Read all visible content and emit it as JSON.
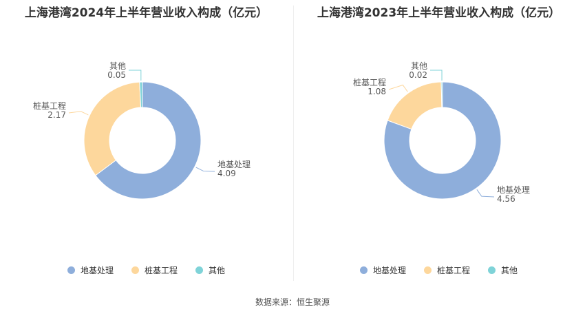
{
  "colors": {
    "地基处理": "#8eaedb",
    "桩基工程": "#fdd79c",
    "其他": "#7fd3d8"
  },
  "chart_data": [
    {
      "type": "pie",
      "title": "上海港湾2024年上半年营业收入构成（亿元）",
      "slices": [
        {
          "name": "地基处理",
          "value": 4.09
        },
        {
          "name": "桩基工程",
          "value": 2.17
        },
        {
          "name": "其他",
          "value": 0.05
        }
      ],
      "legend": [
        "地基处理",
        "桩基工程",
        "其他"
      ],
      "legend_position": "bottom"
    },
    {
      "type": "pie",
      "title": "上海港湾2023年上半年营业收入构成（亿元）",
      "slices": [
        {
          "name": "地基处理",
          "value": 4.56
        },
        {
          "name": "桩基工程",
          "value": 1.08
        },
        {
          "name": "其他",
          "value": 0.02
        }
      ],
      "legend": [
        "地基处理",
        "桩基工程",
        "其他"
      ],
      "legend_position": "bottom"
    }
  ],
  "footer": "数据来源：恒生聚源"
}
